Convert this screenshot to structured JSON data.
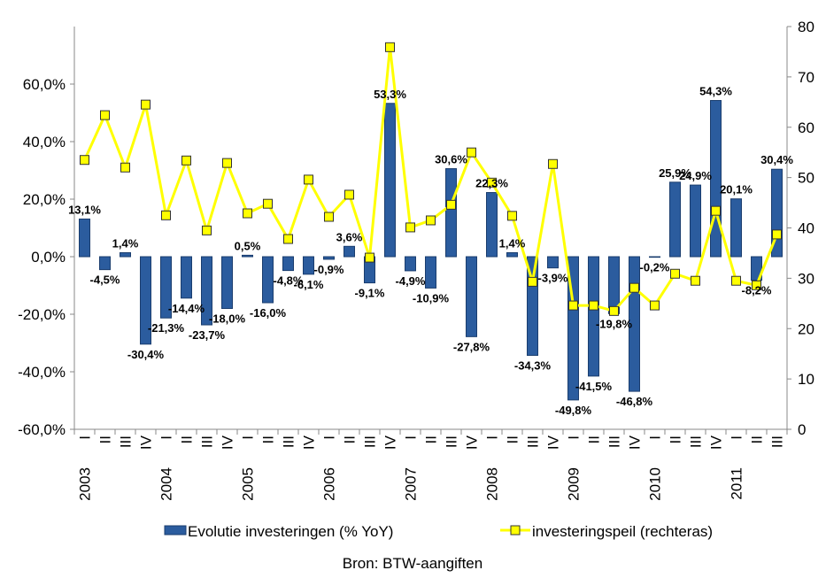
{
  "chart_data": {
    "type": "bar",
    "source": "Bron: BTW-aangiften",
    "categories": [
      "I",
      "II",
      "III",
      "IV",
      "I",
      "II",
      "III",
      "IV",
      "I",
      "II",
      "III",
      "IV",
      "I",
      "II",
      "III",
      "IV",
      "I",
      "II",
      "III",
      "IV",
      "I",
      "II",
      "III",
      "IV",
      "I",
      "II",
      "III",
      "IV",
      "I",
      "II",
      "III",
      "IV",
      "I",
      "II",
      "III"
    ],
    "category_groups": [
      "2003",
      null,
      null,
      null,
      "2004",
      null,
      null,
      null,
      "2005",
      null,
      null,
      null,
      "2006",
      null,
      null,
      null,
      "2007",
      null,
      null,
      null,
      "2008",
      null,
      null,
      null,
      "2009",
      null,
      null,
      null,
      "2010",
      null,
      null,
      null,
      "2011",
      null,
      null
    ],
    "ylim": [
      -60,
      80
    ],
    "yticks": [
      {
        "value": -60,
        "label": "-60,0%"
      },
      {
        "value": -40,
        "label": "-40,0%"
      },
      {
        "value": -20,
        "label": "-20,0%"
      },
      {
        "value": 0,
        "label": "0,0%"
      },
      {
        "value": 20,
        "label": "20,0%"
      },
      {
        "value": 40,
        "label": "40,0%"
      },
      {
        "value": 60,
        "label": "60,0%"
      }
    ],
    "y2lim": [
      0,
      80
    ],
    "y2ticks": [
      0,
      10,
      20,
      30,
      40,
      50,
      60,
      70,
      80
    ],
    "legend": "bottom",
    "series": [
      {
        "name": "Evolutie investeringen (% YoY)",
        "type": "bar",
        "color": "#2B5C9E",
        "values": [
          13.1,
          -4.5,
          1.4,
          -30.4,
          -21.3,
          -14.4,
          -23.7,
          -18.0,
          0.5,
          -16.0,
          -4.8,
          -6.1,
          -0.9,
          3.6,
          -9.1,
          53.3,
          -4.9,
          -10.9,
          30.6,
          -27.8,
          22.3,
          1.4,
          -34.3,
          -3.9,
          -49.8,
          -41.5,
          -19.8,
          -46.8,
          -0.2,
          25.9,
          24.9,
          54.3,
          20.1,
          -8.2,
          30.4
        ],
        "value_labels": [
          "13,1%",
          "-4,5%",
          "1,4%",
          "-30,4%",
          "-21,3%",
          "-14,4%",
          "-23,7%",
          "-18,0%",
          "0,5%",
          "-16,0%",
          "-4,8%",
          "-6,1%",
          "-0,9%",
          "3,6%",
          "-9,1%",
          "53,3%",
          "-4,9%",
          "-10,9%",
          "30,6%",
          "-27,8%",
          "22,3%",
          "1,4%",
          "-34,3%",
          "-3,9%",
          "-49,8%",
          "-41,5%",
          "-19,8%",
          "-46,8%",
          "-0,2%",
          "25,9%",
          "24,9%",
          "54,3%",
          "20,1%",
          "-8,2%",
          "30,4%"
        ]
      },
      {
        "name": "investeringspeil (rechteras)",
        "type": "line",
        "axis": "y2",
        "color": "#FFFF00",
        "values": [
          53.5,
          62.4,
          52.0,
          64.5,
          42.5,
          53.4,
          39.5,
          52.9,
          42.9,
          44.8,
          37.8,
          49.6,
          42.2,
          46.6,
          34.1,
          75.9,
          40.1,
          41.5,
          44.6,
          55.0,
          49.0,
          42.4,
          29.3,
          52.7,
          24.6,
          24.6,
          23.5,
          28.1,
          24.6,
          30.9,
          29.5,
          43.4,
          29.5,
          28.6,
          38.7
        ]
      }
    ]
  }
}
